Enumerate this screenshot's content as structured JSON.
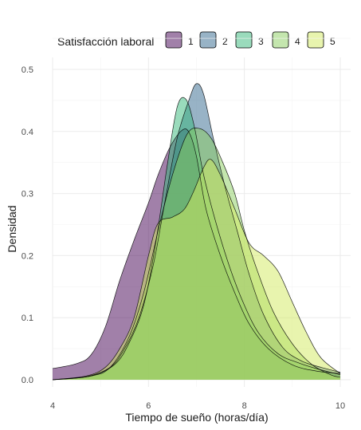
{
  "chart_data": {
    "type": "area",
    "subtype": "density",
    "title": "",
    "xlabel": "Tiempo de sueño (horas/día)",
    "ylabel": "Densidad",
    "xlim": [
      4,
      10
    ],
    "ylim": [
      0,
      0.5
    ],
    "x_ticks": [
      4,
      6,
      8,
      10
    ],
    "y_ticks": [
      0.0,
      0.1,
      0.2,
      0.3,
      0.4,
      0.5
    ],
    "x_tick_labels": [
      "4",
      "6",
      "8",
      "10"
    ],
    "y_tick_labels": [
      "0.0",
      "0.1",
      "0.2",
      "0.3",
      "0.4",
      "0.5"
    ],
    "grid": true,
    "legend": {
      "title": "Satisfacción laboral",
      "position": "top"
    },
    "series": [
      {
        "name": "1",
        "color": "#440154",
        "points": [
          [
            4.0,
            0.018
          ],
          [
            4.5,
            0.026
          ],
          [
            4.8,
            0.04
          ],
          [
            5.1,
            0.085
          ],
          [
            5.4,
            0.16
          ],
          [
            5.7,
            0.225
          ],
          [
            6.0,
            0.285
          ],
          [
            6.2,
            0.33
          ],
          [
            6.45,
            0.375
          ],
          [
            6.7,
            0.402
          ],
          [
            6.85,
            0.398
          ],
          [
            7.0,
            0.36
          ],
          [
            7.2,
            0.275
          ],
          [
            7.5,
            0.2
          ],
          [
            7.8,
            0.14
          ],
          [
            8.1,
            0.09
          ],
          [
            8.5,
            0.05
          ],
          [
            9.0,
            0.024
          ],
          [
            9.5,
            0.014
          ],
          [
            10.0,
            0.01
          ]
        ]
      },
      {
        "name": "2",
        "color": "#31688e",
        "points": [
          [
            4.0,
            0.0
          ],
          [
            4.7,
            0.005
          ],
          [
            5.2,
            0.02
          ],
          [
            5.5,
            0.05
          ],
          [
            5.8,
            0.1
          ],
          [
            6.1,
            0.185
          ],
          [
            6.35,
            0.29
          ],
          [
            6.6,
            0.39
          ],
          [
            6.85,
            0.452
          ],
          [
            7.0,
            0.477
          ],
          [
            7.15,
            0.46
          ],
          [
            7.35,
            0.39
          ],
          [
            7.6,
            0.31
          ],
          [
            7.85,
            0.24
          ],
          [
            8.1,
            0.17
          ],
          [
            8.4,
            0.105
          ],
          [
            8.8,
            0.052
          ],
          [
            9.2,
            0.03
          ],
          [
            9.6,
            0.02
          ],
          [
            10.0,
            0.012
          ]
        ]
      },
      {
        "name": "3",
        "color": "#35b779",
        "points": [
          [
            4.0,
            0.0
          ],
          [
            4.8,
            0.006
          ],
          [
            5.3,
            0.025
          ],
          [
            5.6,
            0.06
          ],
          [
            5.9,
            0.12
          ],
          [
            6.15,
            0.22
          ],
          [
            6.4,
            0.35
          ],
          [
            6.6,
            0.44
          ],
          [
            6.78,
            0.452
          ],
          [
            6.95,
            0.41
          ],
          [
            7.15,
            0.33
          ],
          [
            7.4,
            0.255
          ],
          [
            7.7,
            0.18
          ],
          [
            8.0,
            0.12
          ],
          [
            8.3,
            0.075
          ],
          [
            8.7,
            0.042
          ],
          [
            9.1,
            0.028
          ],
          [
            9.5,
            0.018
          ],
          [
            10.0,
            0.008
          ]
        ]
      },
      {
        "name": "4",
        "color": "#8ace5e",
        "points": [
          [
            4.0,
            0.0
          ],
          [
            4.8,
            0.006
          ],
          [
            5.2,
            0.02
          ],
          [
            5.6,
            0.07
          ],
          [
            5.9,
            0.14
          ],
          [
            6.2,
            0.24
          ],
          [
            6.5,
            0.33
          ],
          [
            6.8,
            0.395
          ],
          [
            7.05,
            0.405
          ],
          [
            7.3,
            0.39
          ],
          [
            7.55,
            0.35
          ],
          [
            7.8,
            0.3
          ],
          [
            8.0,
            0.24
          ],
          [
            8.25,
            0.18
          ],
          [
            8.6,
            0.11
          ],
          [
            9.0,
            0.058
          ],
          [
            9.4,
            0.025
          ],
          [
            9.8,
            0.008
          ],
          [
            10.0,
            0.004
          ]
        ]
      },
      {
        "name": "5",
        "color": "#d2ea5e",
        "points": [
          [
            4.0,
            0.0
          ],
          [
            4.7,
            0.006
          ],
          [
            5.1,
            0.02
          ],
          [
            5.4,
            0.05
          ],
          [
            5.7,
            0.1
          ],
          [
            6.0,
            0.2
          ],
          [
            6.2,
            0.252
          ],
          [
            6.5,
            0.262
          ],
          [
            6.75,
            0.275
          ],
          [
            6.95,
            0.305
          ],
          [
            7.15,
            0.342
          ],
          [
            7.3,
            0.355
          ],
          [
            7.5,
            0.33
          ],
          [
            7.8,
            0.275
          ],
          [
            8.1,
            0.22
          ],
          [
            8.4,
            0.2
          ],
          [
            8.7,
            0.175
          ],
          [
            9.0,
            0.125
          ],
          [
            9.3,
            0.075
          ],
          [
            9.6,
            0.035
          ],
          [
            10.0,
            0.01
          ]
        ]
      }
    ]
  }
}
